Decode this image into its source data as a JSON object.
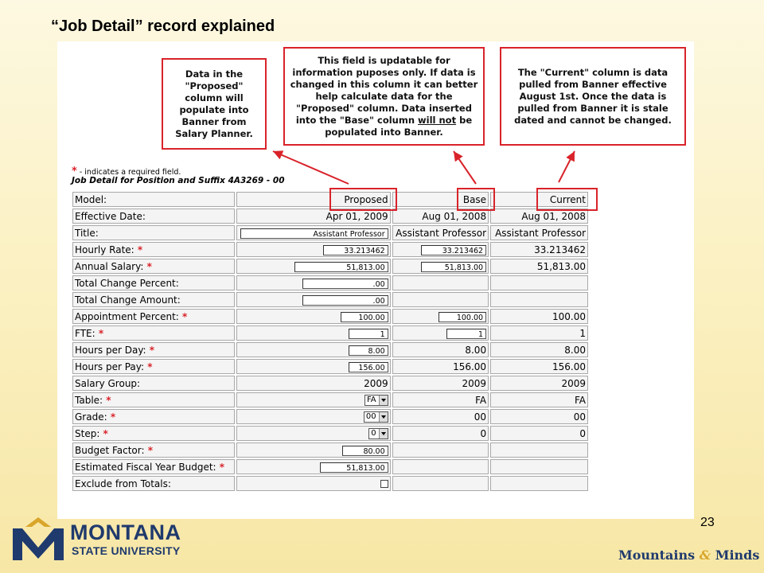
{
  "slide": {
    "title": "“Job Detail” record explained",
    "page_number": "23"
  },
  "callouts": {
    "proposed": "Data in the \"Proposed\" column will populate into Banner from Salary Planner.",
    "base_pre": "This field is updatable for information puposes only. If data is changed in this column it can better help calculate data for the \"Proposed\" column. Data inserted into the \"Base\" column ",
    "base_underline": "will not",
    "base_post": " be populated into Banner.",
    "current": "The \"Current\" column is data pulled from Banner effective August 1st. Once the data is pulled from Banner it is stale dated and cannot be changed."
  },
  "form": {
    "required_note": "- indicates a required field.",
    "heading": "Job Detail for Position and Suffix 4A3269 - 00",
    "rows": [
      {
        "label": "Model:",
        "proposed": "Proposed",
        "base": "Base",
        "current": "Current"
      },
      {
        "label": "Effective Date:",
        "proposed": "Apr 01, 2009",
        "base": "Aug 01, 2008",
        "current": "Aug 01, 2008"
      },
      {
        "label": "Title:",
        "proposed": "Assistant Professor",
        "base": "Assistant Professor",
        "current": "Assistant Professor"
      },
      {
        "label": "Hourly Rate:",
        "proposed": "33.213462",
        "base": "33.213462",
        "current": "33.213462"
      },
      {
        "label": "Annual Salary:",
        "proposed": "51,813.00",
        "base": "51,813.00",
        "current": "51,813.00"
      },
      {
        "label": "Total Change Percent:",
        "proposed": ".00",
        "base": "",
        "current": ""
      },
      {
        "label": "Total Change Amount:",
        "proposed": ".00",
        "base": "",
        "current": ""
      },
      {
        "label": "Appointment Percent:",
        "proposed": "100.00",
        "base": "100.00",
        "current": "100.00"
      },
      {
        "label": "FTE:",
        "proposed": "1",
        "base": "1",
        "current": "1"
      },
      {
        "label": "Hours per Day:",
        "proposed": "8.00",
        "base": "8.00",
        "current": "8.00"
      },
      {
        "label": "Hours per Pay:",
        "proposed": "156.00",
        "base": "156.00",
        "current": "156.00"
      },
      {
        "label": "Salary Group:",
        "proposed": "2009",
        "base": "2009",
        "current": "2009"
      },
      {
        "label": "Table:",
        "proposed": "FA",
        "base": "FA",
        "current": "FA"
      },
      {
        "label": "Grade:",
        "proposed": "00",
        "base": "00",
        "current": "00"
      },
      {
        "label": "Step:",
        "proposed": "0",
        "base": "0",
        "current": "0"
      },
      {
        "label": "Budget Factor:",
        "proposed": "80.00",
        "base": "",
        "current": ""
      },
      {
        "label": "Estimated Fiscal Year Budget:",
        "proposed": "51,813.00",
        "base": "",
        "current": ""
      },
      {
        "label": "Exclude from Totals:",
        "proposed": "",
        "base": "",
        "current": ""
      }
    ]
  },
  "footer": {
    "logo_line1": "MONTANA",
    "logo_line2": "STATE UNIVERSITY",
    "tagline_part1": "Mountains",
    "tagline_amp": "&",
    "tagline_part2": "Minds"
  },
  "colors": {
    "accent_red": "#d9232a",
    "brand_blue": "#1f3a6d",
    "brand_gold": "#d9a52a"
  }
}
